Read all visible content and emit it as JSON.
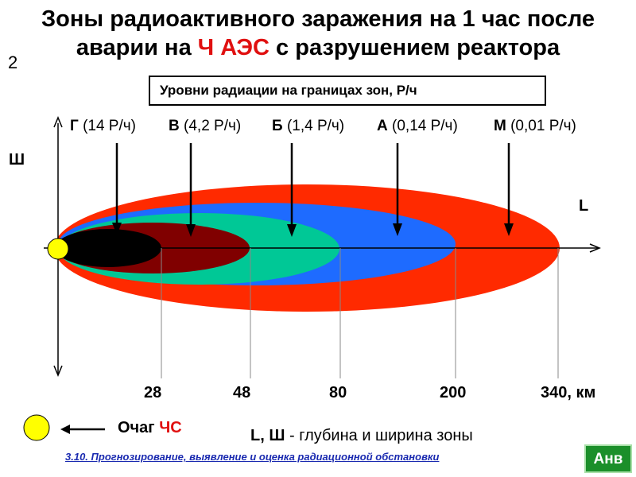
{
  "title": {
    "line1": "Зоны радиоактивного заражения на 1 час после",
    "line2_pre": "аварии на ",
    "line2_red": "Ч АЭС",
    "line2_post": " с разрушением реактора"
  },
  "slide_number": "2",
  "legend_box": "Уровни радиации на границах зон, Р/ч",
  "zones": [
    {
      "letter": "Г",
      "level": "(14 Р/ч)"
    },
    {
      "letter": "В",
      "level": "(4,2 Р/ч)"
    },
    {
      "letter": "Б",
      "level": "(1,4 Р/ч)"
    },
    {
      "letter": "А",
      "level": "(0,14 Р/ч)"
    },
    {
      "letter": "М",
      "level": "(0,01 Р/ч)"
    }
  ],
  "zone_colors": {
    "M": "#ff2a00",
    "A": "#1e6bff",
    "B": "#00c896",
    "V": "#800000",
    "G": "#000000"
  },
  "axes": {
    "width_label": "Ш",
    "length_label": "L"
  },
  "distances": [
    "28",
    "48",
    "80",
    "200",
    "340, км"
  ],
  "source": {
    "label": "Очаг ",
    "label_red": "ЧС"
  },
  "caption": {
    "bold": "L, Ш",
    "rest": " - глубина и ширина зоны"
  },
  "link_text": "3.10.  Прогнозирование, выявление и оценка радиационной обстановки",
  "button_label": "Анв",
  "icons": {
    "source_marker": "yellow-circle",
    "arrows": "down-arrow"
  }
}
